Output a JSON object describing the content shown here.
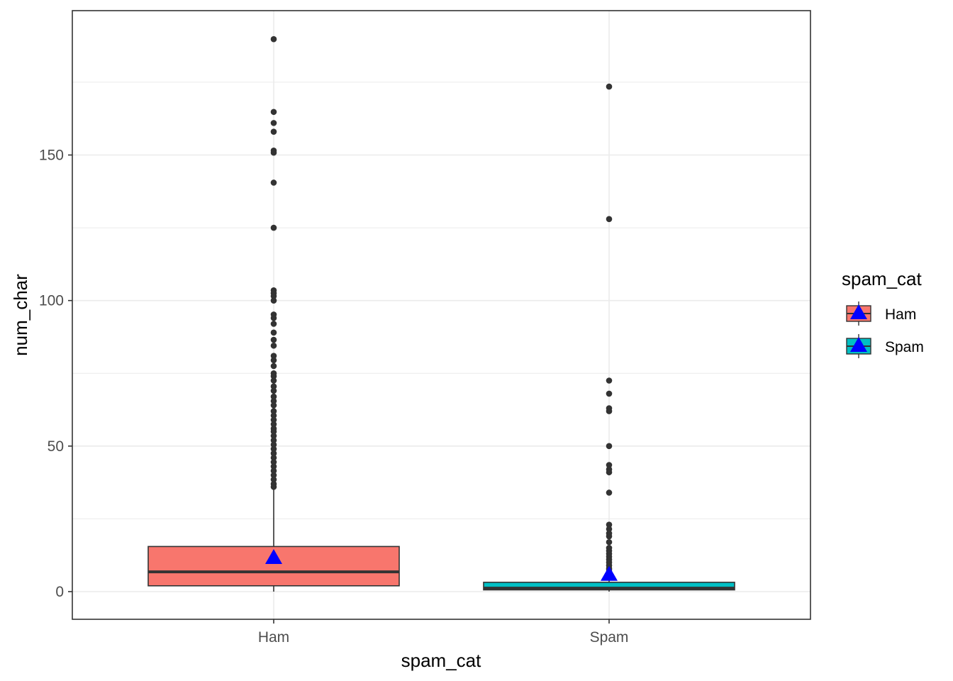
{
  "chart_data": {
    "type": "boxplot",
    "xlabel": "spam_cat",
    "ylabel": "num_char",
    "categories": [
      "Ham",
      "Spam"
    ],
    "ylim": [
      -7.5,
      200
    ],
    "y_ticks": [
      0,
      50,
      100,
      150
    ],
    "y_minor_ticks": [
      25,
      75,
      125,
      175
    ],
    "grid": true,
    "legend": {
      "title": "spam_cat",
      "placement": "right",
      "entries": [
        "Ham",
        "Spam"
      ]
    },
    "colors": {
      "Ham": "#F8766D",
      "Spam": "#00BFC4",
      "mean_marker": "#0000FF",
      "box_line": "#333333",
      "point": "#333333"
    },
    "boxes": [
      {
        "category": "Ham",
        "q1": 2.0,
        "median": 6.8,
        "q3": 15.5,
        "whisker_low": 0.0,
        "whisker_high": 35.0,
        "mean": 11.7,
        "outliers": [
          189.8,
          164.8,
          161.0,
          158.0,
          151.5,
          150.8,
          140.5,
          125.0,
          103.5,
          102.5,
          101.5,
          100.0,
          95.2,
          94.0,
          92.0,
          89.0,
          86.5,
          84.5,
          81.0,
          79.5,
          77.5,
          75.0,
          74.0,
          72.5,
          70.5,
          69.0,
          67.0,
          65.5,
          64.0,
          62.0,
          60.5,
          59.0,
          57.5,
          56.0,
          55.0,
          53.5,
          52.0,
          50.5,
          49.0,
          47.5,
          46.0,
          44.5,
          43.0,
          41.5,
          40.0,
          38.5,
          37.0,
          36.0
        ]
      },
      {
        "category": "Spam",
        "q1": 0.6,
        "median": 1.2,
        "q3": 3.2,
        "whisker_low": 0.0,
        "whisker_high": 6.8,
        "mean": 5.9,
        "outliers": [
          173.5,
          128.0,
          72.5,
          68.0,
          63.0,
          62.0,
          50.0,
          43.5,
          42.0,
          41.0,
          34.0,
          23.0,
          21.5,
          20.0,
          19.0,
          17.0,
          15.0,
          14.0,
          13.0,
          12.0,
          11.0,
          10.0,
          9.0,
          8.0,
          7.5
        ]
      }
    ]
  }
}
